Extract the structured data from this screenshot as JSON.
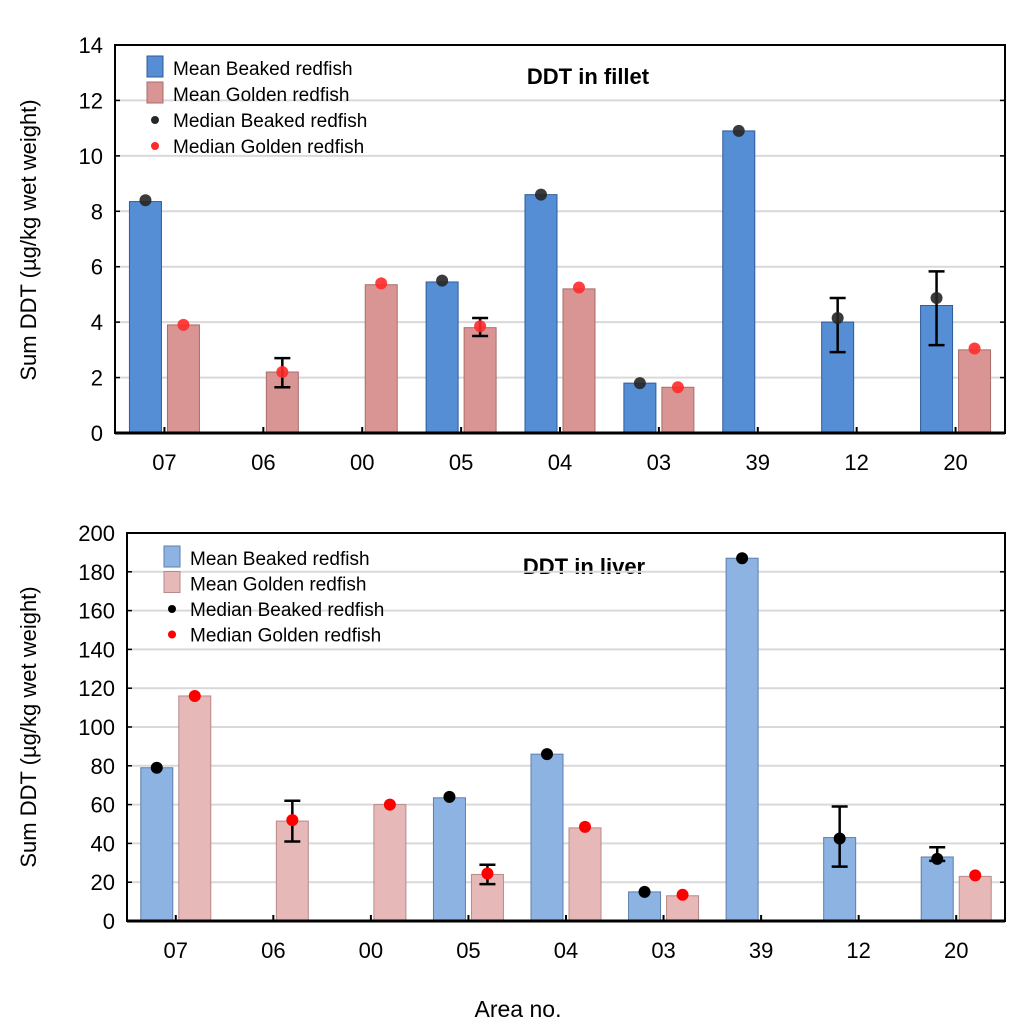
{
  "chart_data": [
    {
      "type": "bar",
      "title": "DDT in fillet",
      "xlabel": "",
      "ylabel": "Sum DDT (µg/kg wet weight)",
      "ylim": [
        0,
        14
      ],
      "yticks": [
        0,
        2,
        4,
        6,
        8,
        10,
        12,
        14
      ],
      "grid": true,
      "legend_position": "top-left",
      "categories": [
        "07",
        "06",
        "00",
        "05",
        "04",
        "03",
        "39",
        "12",
        "20"
      ],
      "colors": {
        "beaked_bar": "#558ed5",
        "golden_bar": "#d99594",
        "beaked_median": "#262626",
        "golden_median": "#ff2a2a"
      },
      "legend": [
        "Mean Beaked redfish",
        "Mean Golden redfish",
        "Median Beaked redfish",
        "Median Golden redfish"
      ],
      "series": [
        {
          "name": "Mean Beaked redfish",
          "kind": "bar",
          "values": [
            8.35,
            null,
            null,
            5.45,
            8.6,
            1.8,
            10.9,
            4.0,
            4.6
          ]
        },
        {
          "name": "Mean Golden redfish",
          "kind": "bar",
          "values": [
            3.9,
            2.2,
            5.35,
            3.8,
            5.2,
            1.65,
            null,
            null,
            3.0
          ]
        },
        {
          "name": "Median Beaked redfish",
          "kind": "point",
          "values": [
            8.4,
            null,
            null,
            5.5,
            8.6,
            1.8,
            10.9,
            4.15,
            4.87
          ]
        },
        {
          "name": "Median Golden redfish",
          "kind": "point",
          "values": [
            3.9,
            2.2,
            5.4,
            3.85,
            5.25,
            1.65,
            null,
            null,
            3.05
          ]
        }
      ],
      "error_bars": [
        {
          "series": "Mean Golden redfish",
          "category": "06",
          "low": 1.65,
          "high": 2.7
        },
        {
          "series": "Mean Golden redfish",
          "category": "05",
          "low": 3.5,
          "high": 4.15
        },
        {
          "series": "Mean Beaked redfish",
          "category": "12",
          "low": 2.92,
          "high": 4.87
        },
        {
          "series": "Mean Beaked redfish",
          "category": "20",
          "low": 3.17,
          "high": 5.83
        }
      ]
    },
    {
      "type": "bar",
      "title": "DDT in liver",
      "xlabel": "Area no.",
      "ylabel": "Sum DDT (µg/kg wet weight)",
      "ylim": [
        0,
        200
      ],
      "yticks": [
        0,
        20,
        40,
        60,
        80,
        100,
        120,
        140,
        160,
        180,
        200
      ],
      "grid": true,
      "legend_position": "top-left",
      "categories": [
        "07",
        "06",
        "00",
        "05",
        "04",
        "03",
        "39",
        "12",
        "20"
      ],
      "colors": {
        "beaked_bar": "#8db3e2",
        "golden_bar": "#e6b9b8",
        "beaked_median": "#000000",
        "golden_median": "#ff0000"
      },
      "legend": [
        "Mean Beaked redfish",
        "Mean Golden redfish",
        "Median Beaked redfish",
        "Median Golden redfish"
      ],
      "series": [
        {
          "name": "Mean Beaked redfish",
          "kind": "bar",
          "values": [
            79,
            null,
            null,
            63.5,
            86,
            15,
            187,
            43,
            33
          ]
        },
        {
          "name": "Mean Golden redfish",
          "kind": "bar",
          "values": [
            116,
            51.5,
            60,
            24,
            48,
            13,
            null,
            null,
            23
          ]
        },
        {
          "name": "Median Beaked redfish",
          "kind": "point",
          "values": [
            79,
            null,
            null,
            64,
            86,
            15,
            187,
            42.5,
            32
          ]
        },
        {
          "name": "Median Golden redfish",
          "kind": "point",
          "values": [
            116,
            52,
            60,
            24.5,
            48.5,
            13.5,
            null,
            null,
            23.5
          ]
        }
      ],
      "error_bars": [
        {
          "series": "Mean Golden redfish",
          "category": "06",
          "low": 41,
          "high": 62
        },
        {
          "series": "Mean Golden redfish",
          "category": "05",
          "low": 19,
          "high": 29
        },
        {
          "series": "Mean Beaked redfish",
          "category": "12",
          "low": 28,
          "high": 59
        },
        {
          "series": "Mean Beaked redfish",
          "category": "20",
          "low": 31,
          "high": 38
        }
      ]
    }
  ]
}
